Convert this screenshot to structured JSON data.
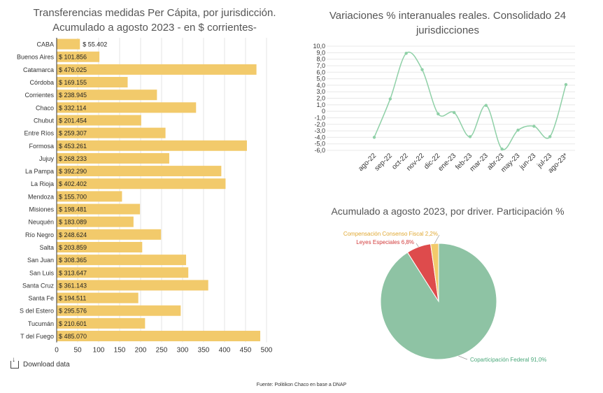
{
  "bar_title": "Transferencias medidas Per Cápita, por jurisdicción.\nAcumulado a agosto 2023 - en $ corrientes-",
  "line_title": "Variaciones % interanuales reales. Consolidado 24\njurisdicciones",
  "pie_title": "Acumulado a agosto 2023, por driver. Participación %",
  "download_label": "Download data",
  "source": "Fuente: Politikon Chaco en base a DNAP",
  "colors": {
    "bar": "#F2CA6B",
    "line": "#8FD0A7",
    "pie_main": "#8EC3A4",
    "pie_red": "#DE4B4C",
    "pie_yellow": "#F2CA6B"
  },
  "chart_data": [
    {
      "type": "bar",
      "orientation": "horizontal",
      "categories": [
        "CABA",
        "Buenos Aires",
        "Catamarca",
        "Córdoba",
        "Corrientes",
        "Chaco",
        "Chubut",
        "Entre Ríos",
        "Formosa",
        "Jujuy",
        "La Pampa",
        "La Rioja",
        "Mendoza",
        "Misiones",
        "Neuquén",
        "Río Negro",
        "Salta",
        "San Juan",
        "San Luis",
        "Santa Cruz",
        "Santa Fe",
        "S del Estero",
        "Tucumán",
        "T del Fuego"
      ],
      "values": [
        55.402,
        101.856,
        476.025,
        169.155,
        238.945,
        332.114,
        201.454,
        259.307,
        453.261,
        268.233,
        392.29,
        402.402,
        155.7,
        198.481,
        183.089,
        248.624,
        203.859,
        308.365,
        313.647,
        361.143,
        194.511,
        295.576,
        210.601,
        485.07
      ],
      "labels": [
        "$ 55.402",
        "$ 101.856",
        "$ 476.025",
        "$ 169.155",
        "$ 238.945",
        "$ 332.114",
        "$ 201.454",
        "$ 259.307",
        "$ 453.261",
        "$ 268.233",
        "$ 392.290",
        "$ 402.402",
        "$ 155.700",
        "$ 198.481",
        "$ 183.089",
        "$ 248.624",
        "$ 203.859",
        "$ 308.365",
        "$ 313.647",
        "$ 361.143",
        "$ 194.511",
        "$ 295.576",
        "$ 210.601",
        "$ 485.070"
      ],
      "xlim": [
        0,
        500
      ],
      "xticks": [
        "0",
        "50",
        "100",
        "150",
        "200",
        "250",
        "300",
        "350",
        "400",
        "450",
        "500"
      ],
      "grid": true
    },
    {
      "type": "line",
      "x": [
        "ago-22",
        "sep-22",
        "oct-22",
        "nov-22",
        "dic-22",
        "ene-23",
        "feb-23",
        "mar-23",
        "abr-23",
        "may-23",
        "jun-23",
        "jul-23",
        "ago-23*"
      ],
      "y": [
        -4.0,
        1.9,
        8.9,
        6.4,
        -0.4,
        -0.2,
        -3.9,
        0.9,
        -5.8,
        -2.9,
        -2.3,
        -3.9,
        4.1
      ],
      "ylim": [
        -6.0,
        10.0
      ],
      "yticks": [
        "10,0",
        "9,0",
        "8,0",
        "7,0",
        "6,0",
        "5,0",
        "4,0",
        "3,0",
        "2,0",
        "1,0",
        "0",
        "-1,0",
        "-2,0",
        "-3,0",
        "-4,0",
        "-5,0",
        "-6,0"
      ],
      "grid": true
    },
    {
      "type": "pie",
      "slices": [
        {
          "label": "Coparticipación Federal 91,0%",
          "value": 91.0
        },
        {
          "label": "Leyes Especiales 6,8%",
          "value": 6.8
        },
        {
          "label": "Compensación Consenso Fiscal 2,2%",
          "value": 2.2
        }
      ]
    }
  ]
}
